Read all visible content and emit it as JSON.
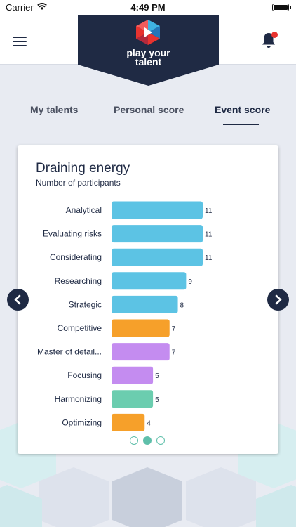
{
  "status_bar": {
    "carrier": "Carrier",
    "time": "4:49 PM"
  },
  "header": {
    "brand_line1": "play your",
    "brand_line2": "talent",
    "menu_icon": "hamburger-menu-icon",
    "bell_icon": "bell-icon",
    "notification_dot_color": "#e8332f"
  },
  "tabs": [
    {
      "label": "My talents",
      "active": false
    },
    {
      "label": "Personal score",
      "active": false
    },
    {
      "label": "Event score",
      "active": true
    }
  ],
  "card": {
    "title": "Draining energy",
    "subtitle": "Number of participants"
  },
  "pager": {
    "total": 3,
    "active_index": 1
  },
  "colors": {
    "navy": "#1f2a44",
    "blue": "#5cc3e4",
    "orange": "#f6a02a",
    "purple": "#c48cf0",
    "teal": "#6bcdaf"
  },
  "chart_data": {
    "type": "bar",
    "orientation": "horizontal",
    "title": "Draining energy",
    "subtitle": "Number of participants",
    "categories": [
      "Analytical",
      "Evaluating risks",
      "Considerating",
      "Researching",
      "Strategic",
      "Competitive",
      "Master of detail...",
      "Focusing",
      "Harmonizing",
      "Optimizing"
    ],
    "values": [
      11,
      11,
      11,
      9,
      8,
      7,
      7,
      5,
      5,
      4
    ],
    "bar_colors": [
      "#5cc3e4",
      "#5cc3e4",
      "#5cc3e4",
      "#5cc3e4",
      "#5cc3e4",
      "#f6a02a",
      "#c48cf0",
      "#c48cf0",
      "#6bcdaf",
      "#f6a02a"
    ],
    "xlim": [
      0,
      11
    ],
    "data_labels": true,
    "grid": false
  }
}
